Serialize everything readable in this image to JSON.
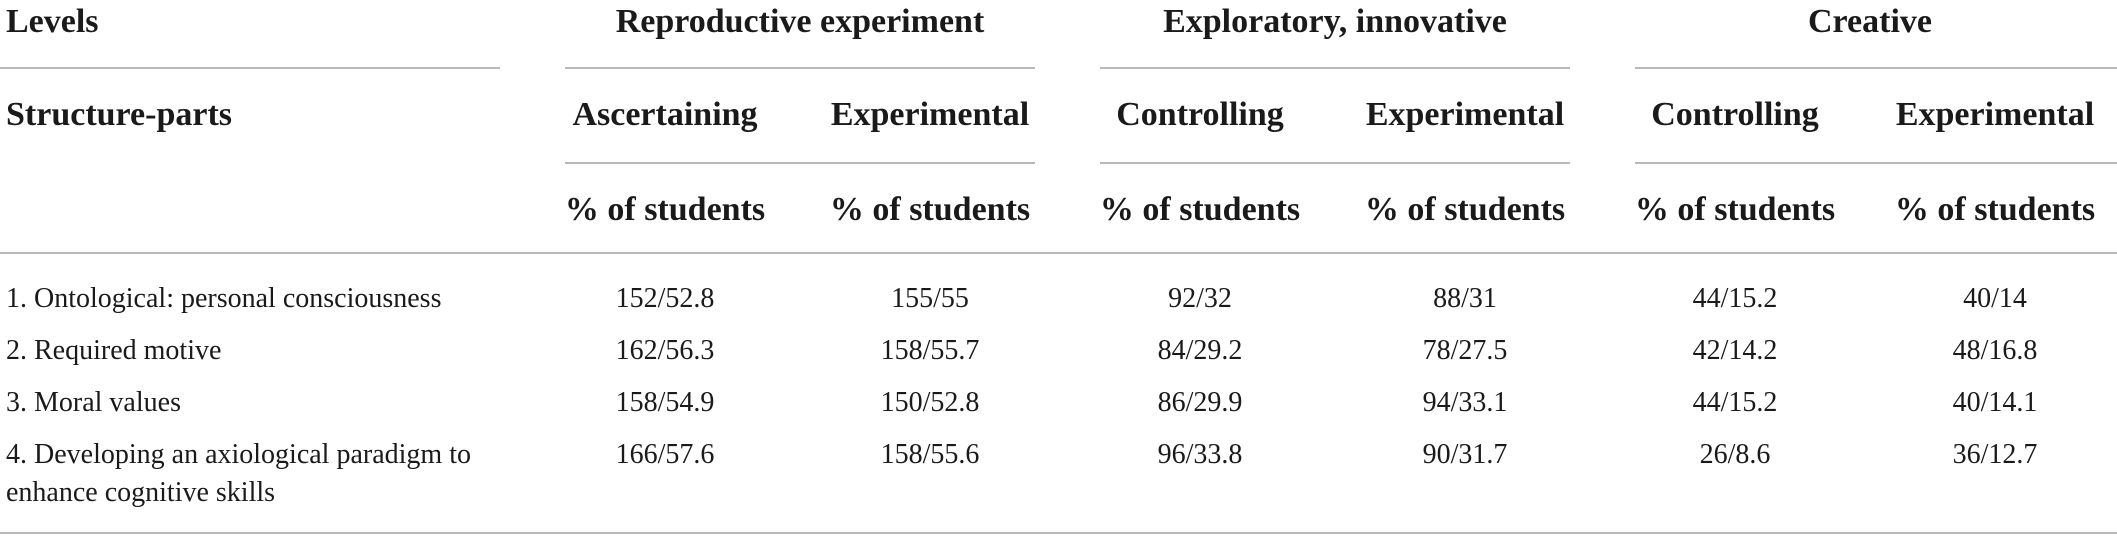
{
  "table": {
    "header": {
      "levels_label": "Levels",
      "structure_label": "Structure-parts",
      "groups": [
        {
          "label": "Reproductive experiment",
          "sub": [
            "Ascertaining",
            "Experimental"
          ]
        },
        {
          "label": "Exploratory, innovative",
          "sub": [
            "Controlling",
            "Experimental"
          ]
        },
        {
          "label": "Creative",
          "sub": [
            "Controlling",
            "Experimental"
          ]
        }
      ],
      "unit_label": "% of students"
    },
    "rows": [
      {
        "label": "1. Ontological: personal consciousness",
        "values": [
          "152/52.8",
          "155/55",
          "92/32",
          "88/31",
          "44/15.2",
          "40/14"
        ]
      },
      {
        "label": "2. Required motive",
        "values": [
          "162/56.3",
          "158/55.7",
          "84/29.2",
          "78/27.5",
          "42/14.2",
          "48/16.8"
        ]
      },
      {
        "label": "3. Moral values",
        "values": [
          "158/54.9",
          "150/52.8",
          "86/29.9",
          "94/33.1",
          "44/15.2",
          "40/14.1"
        ]
      },
      {
        "label_lines": [
          "4. Developing an axiological paradigm to",
          "enhance cognitive skills"
        ],
        "values": [
          "166/57.6",
          "158/55.6",
          "96/33.8",
          "90/31.7",
          "26/8.6",
          "36/12.7"
        ]
      }
    ]
  }
}
